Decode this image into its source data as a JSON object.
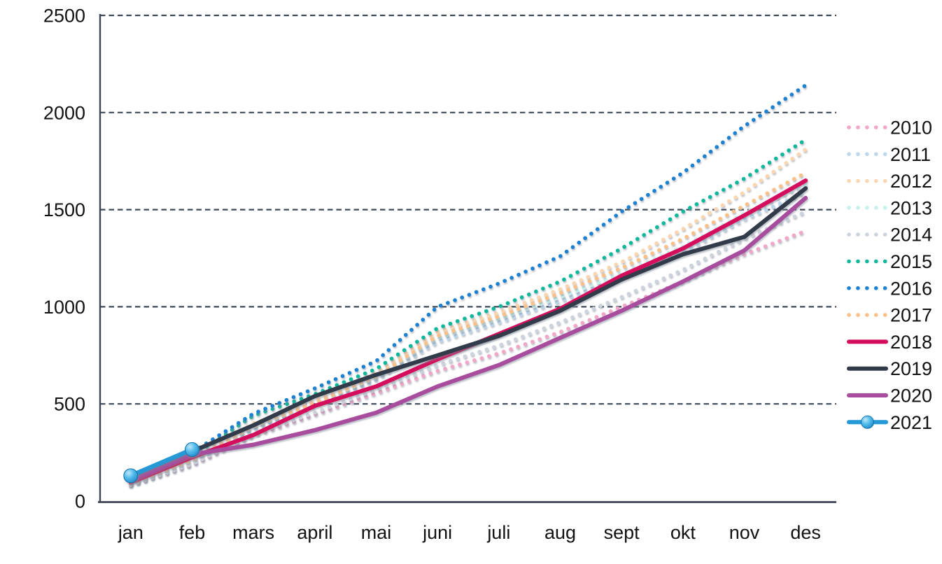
{
  "chart_data": {
    "type": "line",
    "title": "",
    "xlabel": "",
    "ylabel": "",
    "x_categories": [
      "jan",
      "feb",
      "mars",
      "april",
      "mai",
      "juni",
      "juli",
      "aug",
      "sept",
      "okt",
      "nov",
      "des"
    ],
    "y_ticks": [
      0,
      500,
      1000,
      1500,
      2000,
      2500
    ],
    "ylim": [
      0,
      2500
    ],
    "grid": "horizontal-dashed",
    "gridline_color": "#3F4A59",
    "axis_color": "#3E4552",
    "legend_position": "right",
    "legend_order_note": "legend listed top to bottom 2010-2021",
    "series": [
      {
        "name": "2010",
        "color": "#F2A6C8",
        "style": "dotted",
        "values": [
          80,
          185,
          335,
          445,
          555,
          670,
          760,
          870,
          1000,
          1130,
          1270,
          1390
        ]
      },
      {
        "name": "2011",
        "color": "#BDD7EE",
        "style": "dotted",
        "values": [
          85,
          200,
          370,
          490,
          625,
          820,
          920,
          1030,
          1150,
          1280,
          1450,
          1590
        ]
      },
      {
        "name": "2012",
        "color": "#FBD5AF",
        "style": "dotted",
        "values": [
          95,
          220,
          400,
          520,
          660,
          870,
          970,
          1090,
          1230,
          1400,
          1590,
          1810
        ]
      },
      {
        "name": "2013",
        "color": "#C6F1EC",
        "style": "dotted",
        "values": [
          90,
          205,
          380,
          500,
          635,
          840,
          940,
          1050,
          1170,
          1310,
          1480,
          1630
        ]
      },
      {
        "name": "2014",
        "color": "#CDD3DC",
        "style": "dotted",
        "values": [
          82,
          190,
          345,
          455,
          575,
          700,
          800,
          920,
          1050,
          1190,
          1350,
          1490
        ]
      },
      {
        "name": "2015",
        "color": "#10B79B",
        "style": "dotted",
        "values": [
          100,
          230,
          440,
          550,
          680,
          890,
          1000,
          1130,
          1300,
          1490,
          1660,
          1860
        ]
      },
      {
        "name": "2016",
        "color": "#1D81D1",
        "style": "dotted",
        "values": [
          110,
          250,
          450,
          580,
          720,
          1000,
          1120,
          1260,
          1490,
          1690,
          1930,
          2140
        ]
      },
      {
        "name": "2017",
        "color": "#FBC088",
        "style": "dotted",
        "values": [
          90,
          210,
          385,
          505,
          640,
          850,
          950,
          1070,
          1200,
          1350,
          1520,
          1690
        ]
      },
      {
        "name": "2018",
        "color": "#D40C5C",
        "style": "solid",
        "values": [
          95,
          225,
          340,
          490,
          590,
          730,
          860,
          990,
          1160,
          1300,
          1470,
          1650
        ]
      },
      {
        "name": "2019",
        "color": "#333B48",
        "style": "solid",
        "values": [
          115,
          255,
          390,
          540,
          650,
          750,
          850,
          980,
          1140,
          1270,
          1360,
          1610
        ]
      },
      {
        "name": "2020",
        "color": "#A84E9E",
        "style": "solid",
        "values": [
          105,
          240,
          290,
          365,
          455,
          590,
          700,
          840,
          980,
          1130,
          1290,
          1560
        ]
      },
      {
        "name": "2021",
        "color": "#2598D6",
        "style": "solid-marker",
        "marker_fill": "#41B0E6",
        "marker_edge": "#0F72AE",
        "values": [
          130,
          265
        ]
      }
    ]
  }
}
